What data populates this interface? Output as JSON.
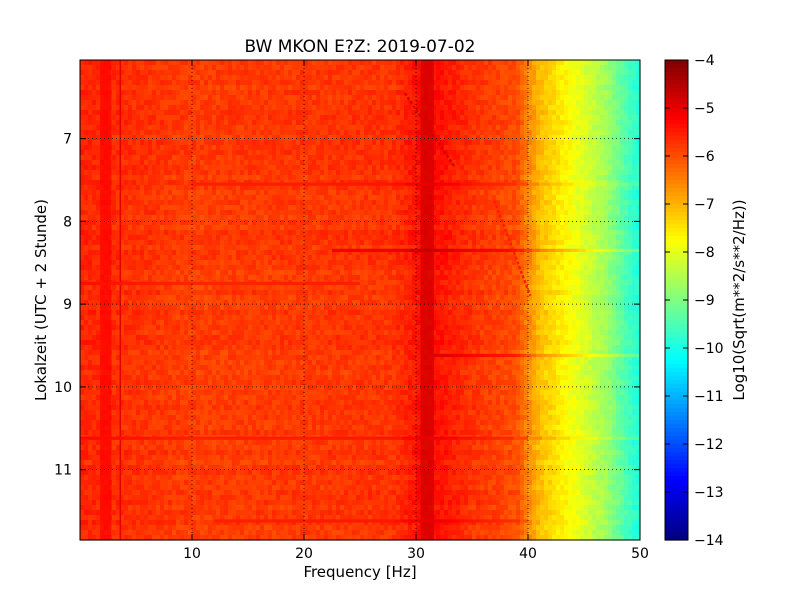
{
  "chart_data": {
    "type": "heatmap",
    "title": "BW MKON E?Z: 2019-07-02",
    "xlabel": "Frequency [Hz]",
    "ylabel": "Lokalzeit (UTC + 2 Stunde)",
    "xlim": [
      0,
      50
    ],
    "ylim": [
      11.85,
      6.05
    ],
    "y_inverted": true,
    "x_ticks": [
      10,
      20,
      30,
      40,
      50
    ],
    "x_tick_labels": [
      "10",
      "20",
      "30",
      "40",
      "50"
    ],
    "y_ticks": [
      7,
      8,
      9,
      10,
      11
    ],
    "y_tick_labels": [
      "7",
      "8",
      "9",
      "10",
      "11"
    ],
    "grid": true,
    "colormap": "jet",
    "colorbar": {
      "label": "Log10(Sqrt(m**2/s**2/Hz))",
      "range": [
        -14,
        -4
      ],
      "ticks": [
        -4,
        -5,
        -6,
        -7,
        -8,
        -9,
        -10,
        -11,
        -12,
        -13,
        -14
      ],
      "tick_labels": [
        "−4",
        "−5",
        "−6",
        "−7",
        "−8",
        "−9",
        "−10",
        "−11",
        "−12",
        "−13",
        "−14"
      ]
    },
    "spectrum_profile": {
      "frequency": [
        0,
        10,
        20,
        28,
        31,
        35,
        39,
        41,
        43,
        45,
        47,
        49,
        50
      ],
      "log_psd": [
        -5.6,
        -5.85,
        -5.8,
        -5.75,
        -5.3,
        -5.75,
        -6.0,
        -7.1,
        -7.6,
        -8.1,
        -8.7,
        -9.6,
        -9.9
      ]
    },
    "features": [
      {
        "kind": "vertical_band",
        "frequency": 31.0,
        "width": 1.2,
        "delta": 0.5
      },
      {
        "kind": "vertical_band",
        "frequency": 2.3,
        "width": 1.0,
        "delta": 0.4
      },
      {
        "kind": "vertical_line",
        "frequency": 3.6,
        "delta": 0.7
      },
      {
        "kind": "horizontal_line",
        "time": 8.35,
        "from": 22.5,
        "to": 50,
        "delta": 0.65
      },
      {
        "kind": "horizontal_line",
        "time": 9.62,
        "from": 31.5,
        "to": 50,
        "delta": 0.5
      },
      {
        "kind": "horizontal_line",
        "time": 7.55,
        "from": 10,
        "to": 50,
        "delta": 0.3
      },
      {
        "kind": "horizontal_line",
        "time": 10.62,
        "from": 0,
        "to": 50,
        "delta": 0.3
      },
      {
        "kind": "horizontal_line",
        "time": 11.62,
        "from": 12,
        "to": 40,
        "delta": 0.3
      },
      {
        "kind": "horizontal_line",
        "time": 8.75,
        "from": 0,
        "to": 25,
        "delta": 0.25
      },
      {
        "kind": "diagonal_line",
        "from": [
          29.0,
          6.45
        ],
        "to": [
          33.5,
          7.35
        ],
        "delta": 0.45
      },
      {
        "kind": "diagonal_line",
        "from": [
          37.0,
          7.75
        ],
        "to": [
          40.2,
          8.9
        ],
        "delta": 0.45
      }
    ]
  }
}
